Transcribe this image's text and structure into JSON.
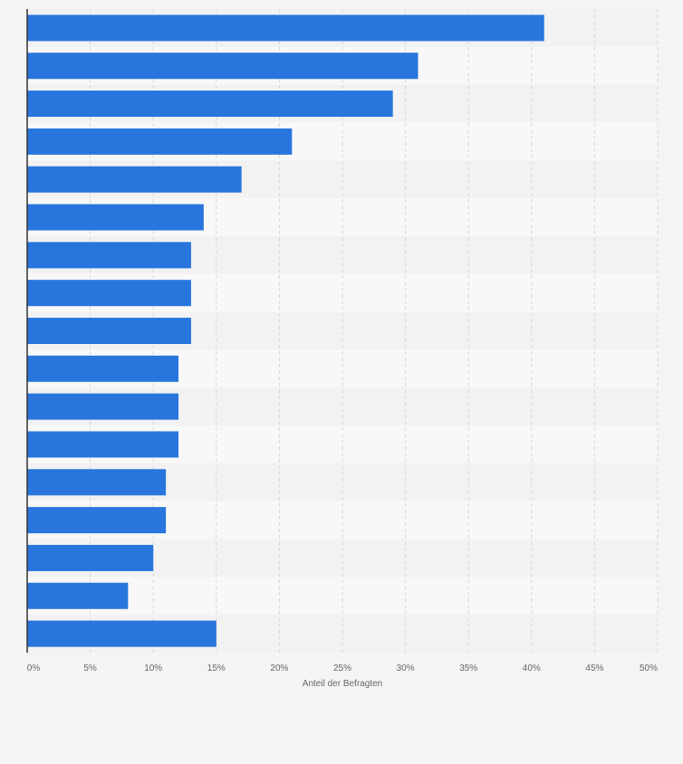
{
  "chart_data": {
    "type": "bar",
    "orientation": "horizontal",
    "title": "",
    "xlabel": "Anteil der Befragten",
    "ylabel": "",
    "categories": [
      "",
      "",
      "",
      "",
      "",
      "",
      "",
      "",
      "",
      "",
      "",
      "",
      "",
      "",
      "",
      "",
      ""
    ],
    "values": [
      41,
      31,
      29,
      21,
      17,
      14,
      13,
      13,
      13,
      12,
      12,
      12,
      11,
      11,
      10,
      8,
      15
    ],
    "unit": "%",
    "xlim": [
      0,
      50
    ],
    "ticks": [
      0,
      5,
      10,
      15,
      20,
      25,
      30,
      35,
      40,
      45,
      50
    ],
    "tick_labels": [
      "0%",
      "5%",
      "10%",
      "15%",
      "20%",
      "25%",
      "30%",
      "35%",
      "40%",
      "45%",
      "50%"
    ],
    "grid": true,
    "legend": "none"
  },
  "colors": {
    "bar": "#2876dd",
    "background": "#f4f4f4",
    "band_light": "#f8f8f8",
    "band_dark": "#f2f2f2",
    "grid": "#d8d8d8",
    "axis": "#333333",
    "text": "#666666"
  }
}
